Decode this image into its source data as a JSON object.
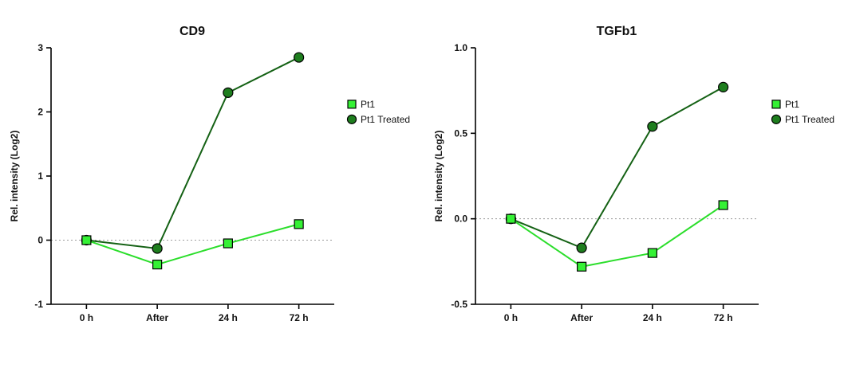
{
  "figure": {
    "background": "#ffffff"
  },
  "colors": {
    "axis": "#000000",
    "zero_line": "#9c9c9c",
    "marker_outline": "#000000"
  },
  "chart_data": [
    {
      "type": "line",
      "title": "CD9",
      "ylabel": "Rel. intensity (Log2)",
      "xlabel": "",
      "categories": [
        "0 h",
        "After",
        "24 h",
        "72 h"
      ],
      "ylim": [
        -1,
        3
      ],
      "yticks": [
        -1,
        0,
        1,
        2,
        3
      ],
      "ytick_labels": [
        "-1",
        "0",
        "1",
        "2",
        "3"
      ],
      "grid": false,
      "zero_line": true,
      "legend_position": "right",
      "series": [
        {
          "name": "Pt1",
          "marker": "square",
          "marker_color": "#35F135",
          "line_color": "#2BDE2B",
          "values": [
            0.0,
            -0.38,
            -0.05,
            0.25
          ]
        },
        {
          "name": "Pt1 Treated",
          "marker": "circle",
          "marker_color": "#1E7E1E",
          "line_color": "#146114",
          "values": [
            0.0,
            -0.13,
            2.3,
            2.85
          ]
        }
      ]
    },
    {
      "type": "line",
      "title": "TGFb1",
      "ylabel": "Rel. intensity (Log2)",
      "xlabel": "",
      "categories": [
        "0 h",
        "After",
        "24 h",
        "72 h"
      ],
      "ylim": [
        -0.5,
        1.0
      ],
      "yticks": [
        -0.5,
        0.0,
        0.5,
        1.0
      ],
      "ytick_labels": [
        "-0.5",
        "0.0",
        "0.5",
        "1.0"
      ],
      "grid": false,
      "zero_line": true,
      "legend_position": "right",
      "series": [
        {
          "name": "Pt1",
          "marker": "square",
          "marker_color": "#35F135",
          "line_color": "#2BDE2B",
          "values": [
            0.0,
            -0.28,
            -0.2,
            0.08
          ]
        },
        {
          "name": "Pt1 Treated",
          "marker": "circle",
          "marker_color": "#1E7E1E",
          "line_color": "#146114",
          "values": [
            0.0,
            -0.17,
            0.54,
            0.77
          ]
        }
      ]
    }
  ]
}
